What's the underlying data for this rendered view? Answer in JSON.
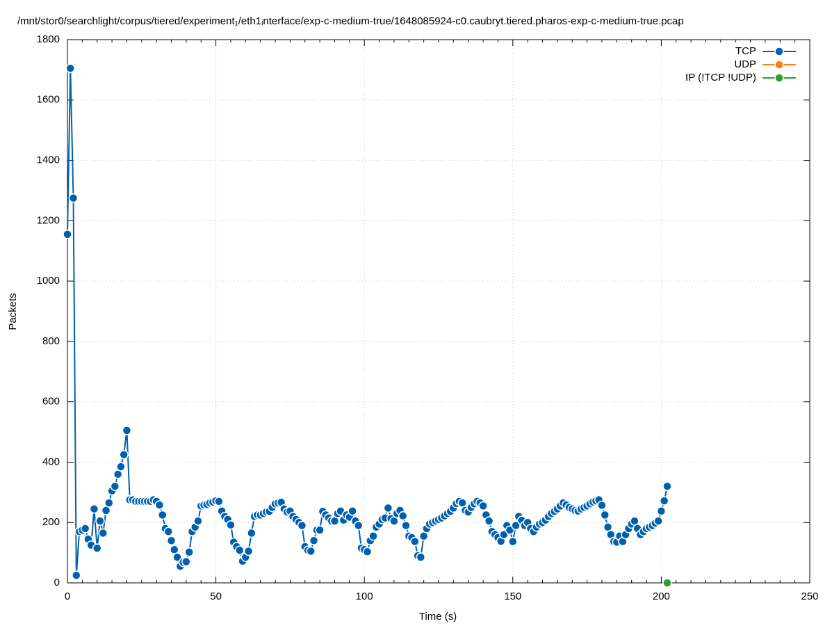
{
  "chart_data": {
    "type": "line",
    "title": "/mnt/stor0/searchlight/corpus/tiered/experiment₁/eth1ᵢnterface/exp-c-medium-true/1648085924-c0.caubryt.tiered.pharos-exp-c-medium-true.pcap",
    "xlabel": "Time (s)",
    "ylabel": "Packets",
    "xlim": [
      0,
      250
    ],
    "xticks": [
      0,
      50,
      100,
      150,
      200,
      250
    ],
    "ylim": [
      0,
      1800
    ],
    "yticks": [
      0,
      200,
      400,
      600,
      800,
      1000,
      1200,
      1400,
      1600,
      1800
    ],
    "grid": true,
    "legend": "top-right",
    "series": [
      {
        "name": "TCP",
        "color": "#0060ad",
        "x": [
          0,
          1,
          2,
          3,
          4,
          5,
          6,
          7,
          8,
          9,
          10,
          11,
          12,
          13,
          14,
          15,
          16,
          17,
          18,
          19,
          20,
          21,
          22,
          23,
          24,
          25,
          26,
          27,
          28,
          29,
          30,
          31,
          32,
          33,
          34,
          35,
          36,
          37,
          38,
          39,
          40,
          41,
          42,
          43,
          44,
          45,
          46,
          47,
          48,
          49,
          50,
          51,
          52,
          53,
          54,
          55,
          56,
          57,
          58,
          59,
          60,
          61,
          62,
          63,
          64,
          65,
          66,
          67,
          68,
          69,
          70,
          71,
          72,
          73,
          74,
          75,
          76,
          77,
          78,
          79,
          80,
          81,
          82,
          83,
          84,
          85,
          86,
          87,
          88,
          89,
          90,
          91,
          92,
          93,
          94,
          95,
          96,
          97,
          98,
          99,
          100,
          101,
          102,
          103,
          104,
          105,
          106,
          107,
          108,
          109,
          110,
          111,
          112,
          113,
          114,
          115,
          116,
          117,
          118,
          119,
          120,
          121,
          122,
          123,
          124,
          125,
          126,
          127,
          128,
          129,
          130,
          131,
          132,
          133,
          134,
          135,
          136,
          137,
          138,
          139,
          140,
          141,
          142,
          143,
          144,
          145,
          146,
          147,
          148,
          149,
          150,
          151,
          152,
          153,
          154,
          155,
          156,
          157,
          158,
          159,
          160,
          161,
          162,
          163,
          164,
          165,
          166,
          167,
          168,
          169,
          170,
          171,
          172,
          173,
          174,
          175,
          176,
          177,
          178,
          179,
          180,
          181,
          182,
          183,
          184,
          185,
          186,
          187,
          188,
          189,
          190,
          191,
          192,
          193,
          194,
          195,
          196,
          197,
          198,
          199,
          200,
          201,
          202
        ],
        "values": [
          1155,
          1705,
          1275,
          25,
          170,
          175,
          180,
          145,
          125,
          245,
          115,
          205,
          165,
          240,
          265,
          305,
          320,
          360,
          385,
          425,
          505,
          275,
          275,
          270,
          270,
          270,
          270,
          270,
          270,
          275,
          270,
          258,
          225,
          180,
          170,
          140,
          110,
          85,
          55,
          68,
          70,
          102,
          170,
          185,
          205,
          255,
          258,
          260,
          265,
          268,
          272,
          270,
          238,
          220,
          210,
          192,
          135,
          120,
          108,
          72,
          85,
          105,
          165,
          220,
          225,
          225,
          230,
          235,
          237,
          250,
          262,
          265,
          267,
          245,
          235,
          238,
          220,
          210,
          200,
          190,
          120,
          108,
          105,
          140,
          175,
          175,
          237,
          225,
          215,
          205,
          205,
          230,
          238,
          208,
          225,
          218,
          238,
          205,
          190,
          115,
          110,
          103,
          140,
          155,
          185,
          195,
          210,
          215,
          248,
          213,
          205,
          230,
          240,
          222,
          190,
          155,
          150,
          137,
          90,
          85,
          155,
          180,
          195,
          200,
          205,
          210,
          215,
          222,
          230,
          237,
          248,
          263,
          270,
          265,
          240,
          235,
          250,
          262,
          270,
          265,
          255,
          225,
          205,
          170,
          160,
          150,
          138,
          160,
          190,
          175,
          137,
          190,
          220,
          207,
          190,
          200,
          180,
          170,
          185,
          195,
          200,
          208,
          220,
          230,
          237,
          245,
          255,
          265,
          258,
          250,
          245,
          240,
          238,
          245,
          250,
          255,
          262,
          268,
          272,
          275,
          257,
          225,
          185,
          160,
          137,
          135,
          155,
          137,
          160,
          180,
          195,
          205,
          180,
          160,
          170,
          180,
          185,
          190,
          198,
          205,
          238,
          272,
          320
        ]
      },
      {
        "name": "UDP",
        "color": "#ff7f0e",
        "x": [],
        "values": []
      },
      {
        "name": "IP (!TCP  !UDP)",
        "color": "#2ca02c",
        "x": [
          202
        ],
        "values": [
          0
        ]
      }
    ]
  }
}
